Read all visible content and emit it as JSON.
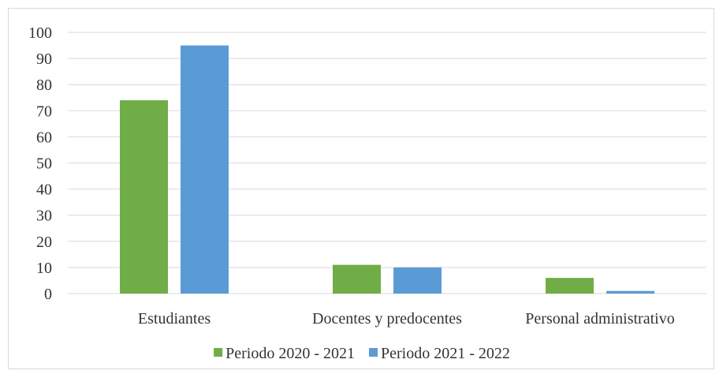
{
  "chart_data": {
    "type": "bar",
    "title": "",
    "xlabel": "",
    "ylabel": "",
    "ylim": [
      0,
      100
    ],
    "yticks": [
      0,
      10,
      20,
      30,
      40,
      50,
      60,
      70,
      80,
      90,
      100
    ],
    "categories": [
      "Estudiantes",
      "Docentes y predocentes",
      "Personal administrativo"
    ],
    "series": [
      {
        "name": "Periodo 2020 - 2021",
        "color": "#70ad47",
        "values": [
          74,
          11,
          6
        ]
      },
      {
        "name": "Periodo 2021 - 2022",
        "color": "#5b9bd5",
        "values": [
          95,
          10,
          1
        ]
      }
    ],
    "grid": true,
    "legend": "bottom"
  }
}
